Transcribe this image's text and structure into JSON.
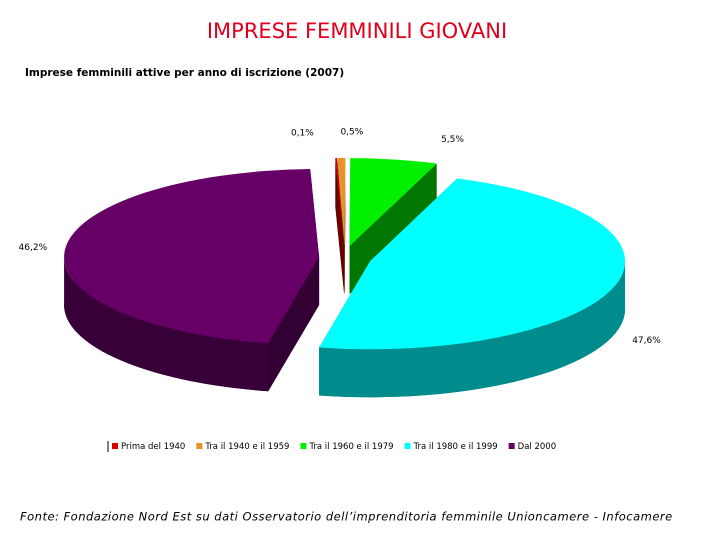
{
  "chart_data": {
    "type": "pie",
    "title": "IMPRESE FEMMINILI GIOVANI",
    "subtitle": "Imprese femminili attive per anno di iscrizione (2007)",
    "categories": [
      "Prima del 1940",
      "Tra il 1940 e il 1959",
      "Tra il 1960 e il 1979",
      "Tra il 1980 e il 1999",
      "Dal 2000"
    ],
    "values": [
      0.1,
      0.5,
      5.5,
      47.6,
      46.2
    ],
    "value_labels": [
      "0,1%",
      "0,5%",
      "5,5%",
      "47,6%",
      "46,2%"
    ],
    "colors": [
      "#d40000",
      "#e8922a",
      "#00f000",
      "#00ffff",
      "#660066"
    ],
    "legend": "bottom",
    "source": "Fonte: Fondazione Nord Est su dati Osservatorio dell’imprenditoria femminile Unioncamere - Infocamere"
  }
}
